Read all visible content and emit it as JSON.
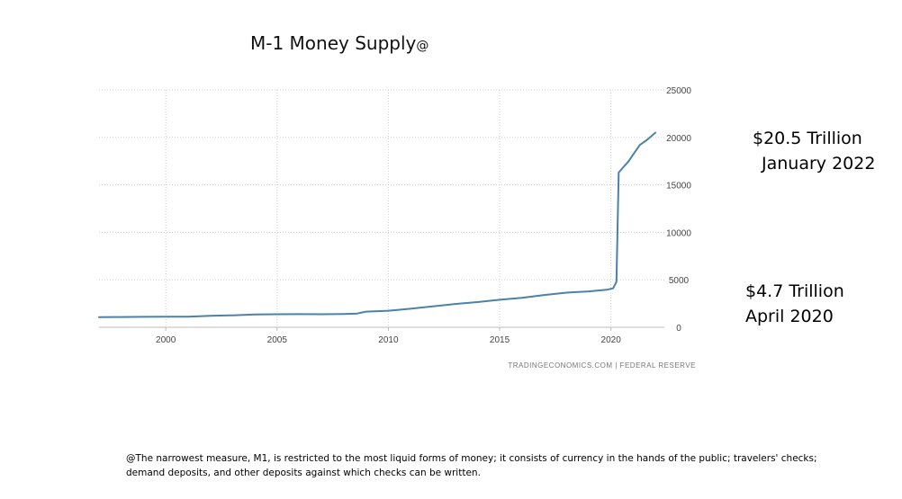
{
  "chart_data": {
    "type": "line",
    "title": "M-1 Money Supply",
    "title_mark": "@",
    "xlabel": "",
    "ylabel": "",
    "xlim": [
      1997,
      2022.4
    ],
    "ylim": [
      0,
      25000
    ],
    "x_ticks": [
      "2000",
      "2005",
      "2010",
      "2015",
      "2020"
    ],
    "y_ticks": [
      "25000",
      "20000",
      "15000",
      "10000",
      "5000",
      "0"
    ],
    "grid": true,
    "source": "TRADINGECONOMICS.COM  |  FEDERAL RESERVE",
    "series": [
      {
        "name": "M-1 Money Supply",
        "color": "#4a82a8",
        "x": [
          1997.0,
          1998.0,
          1999.0,
          2000.0,
          2001.0,
          2002.0,
          2003.0,
          2004.0,
          2005.0,
          2006.0,
          2007.0,
          2008.0,
          2008.6,
          2009.0,
          2010.0,
          2011.0,
          2011.6,
          2012.0,
          2013.0,
          2014.0,
          2015.0,
          2016.0,
          2017.0,
          2018.0,
          2019.0,
          2019.8,
          2020.1,
          2020.25,
          2020.35,
          2020.5,
          2020.8,
          2021.0,
          2021.3,
          2021.6,
          2021.8,
          2022.0
        ],
        "y": [
          1070,
          1080,
          1100,
          1110,
          1120,
          1200,
          1260,
          1340,
          1370,
          1380,
          1370,
          1400,
          1450,
          1650,
          1740,
          1950,
          2100,
          2200,
          2450,
          2650,
          2900,
          3100,
          3400,
          3650,
          3780,
          3950,
          4100,
          4800,
          16300,
          16700,
          17500,
          18200,
          19200,
          19700,
          20100,
          20500
        ]
      }
    ],
    "annotations": [
      {
        "line1": "$20.5 Trillion",
        "line2": "January 2022"
      },
      {
        "line1": "$4.7 Trillion",
        "line2": "April 2020"
      }
    ]
  },
  "footnote": {
    "line1": "@The narrowest measure, M1, is restricted to the most liquid forms of money; it consists of currency in the hands of the public; travelers' checks;",
    "line2": "demand deposits, and other deposits against which checks can be written."
  }
}
